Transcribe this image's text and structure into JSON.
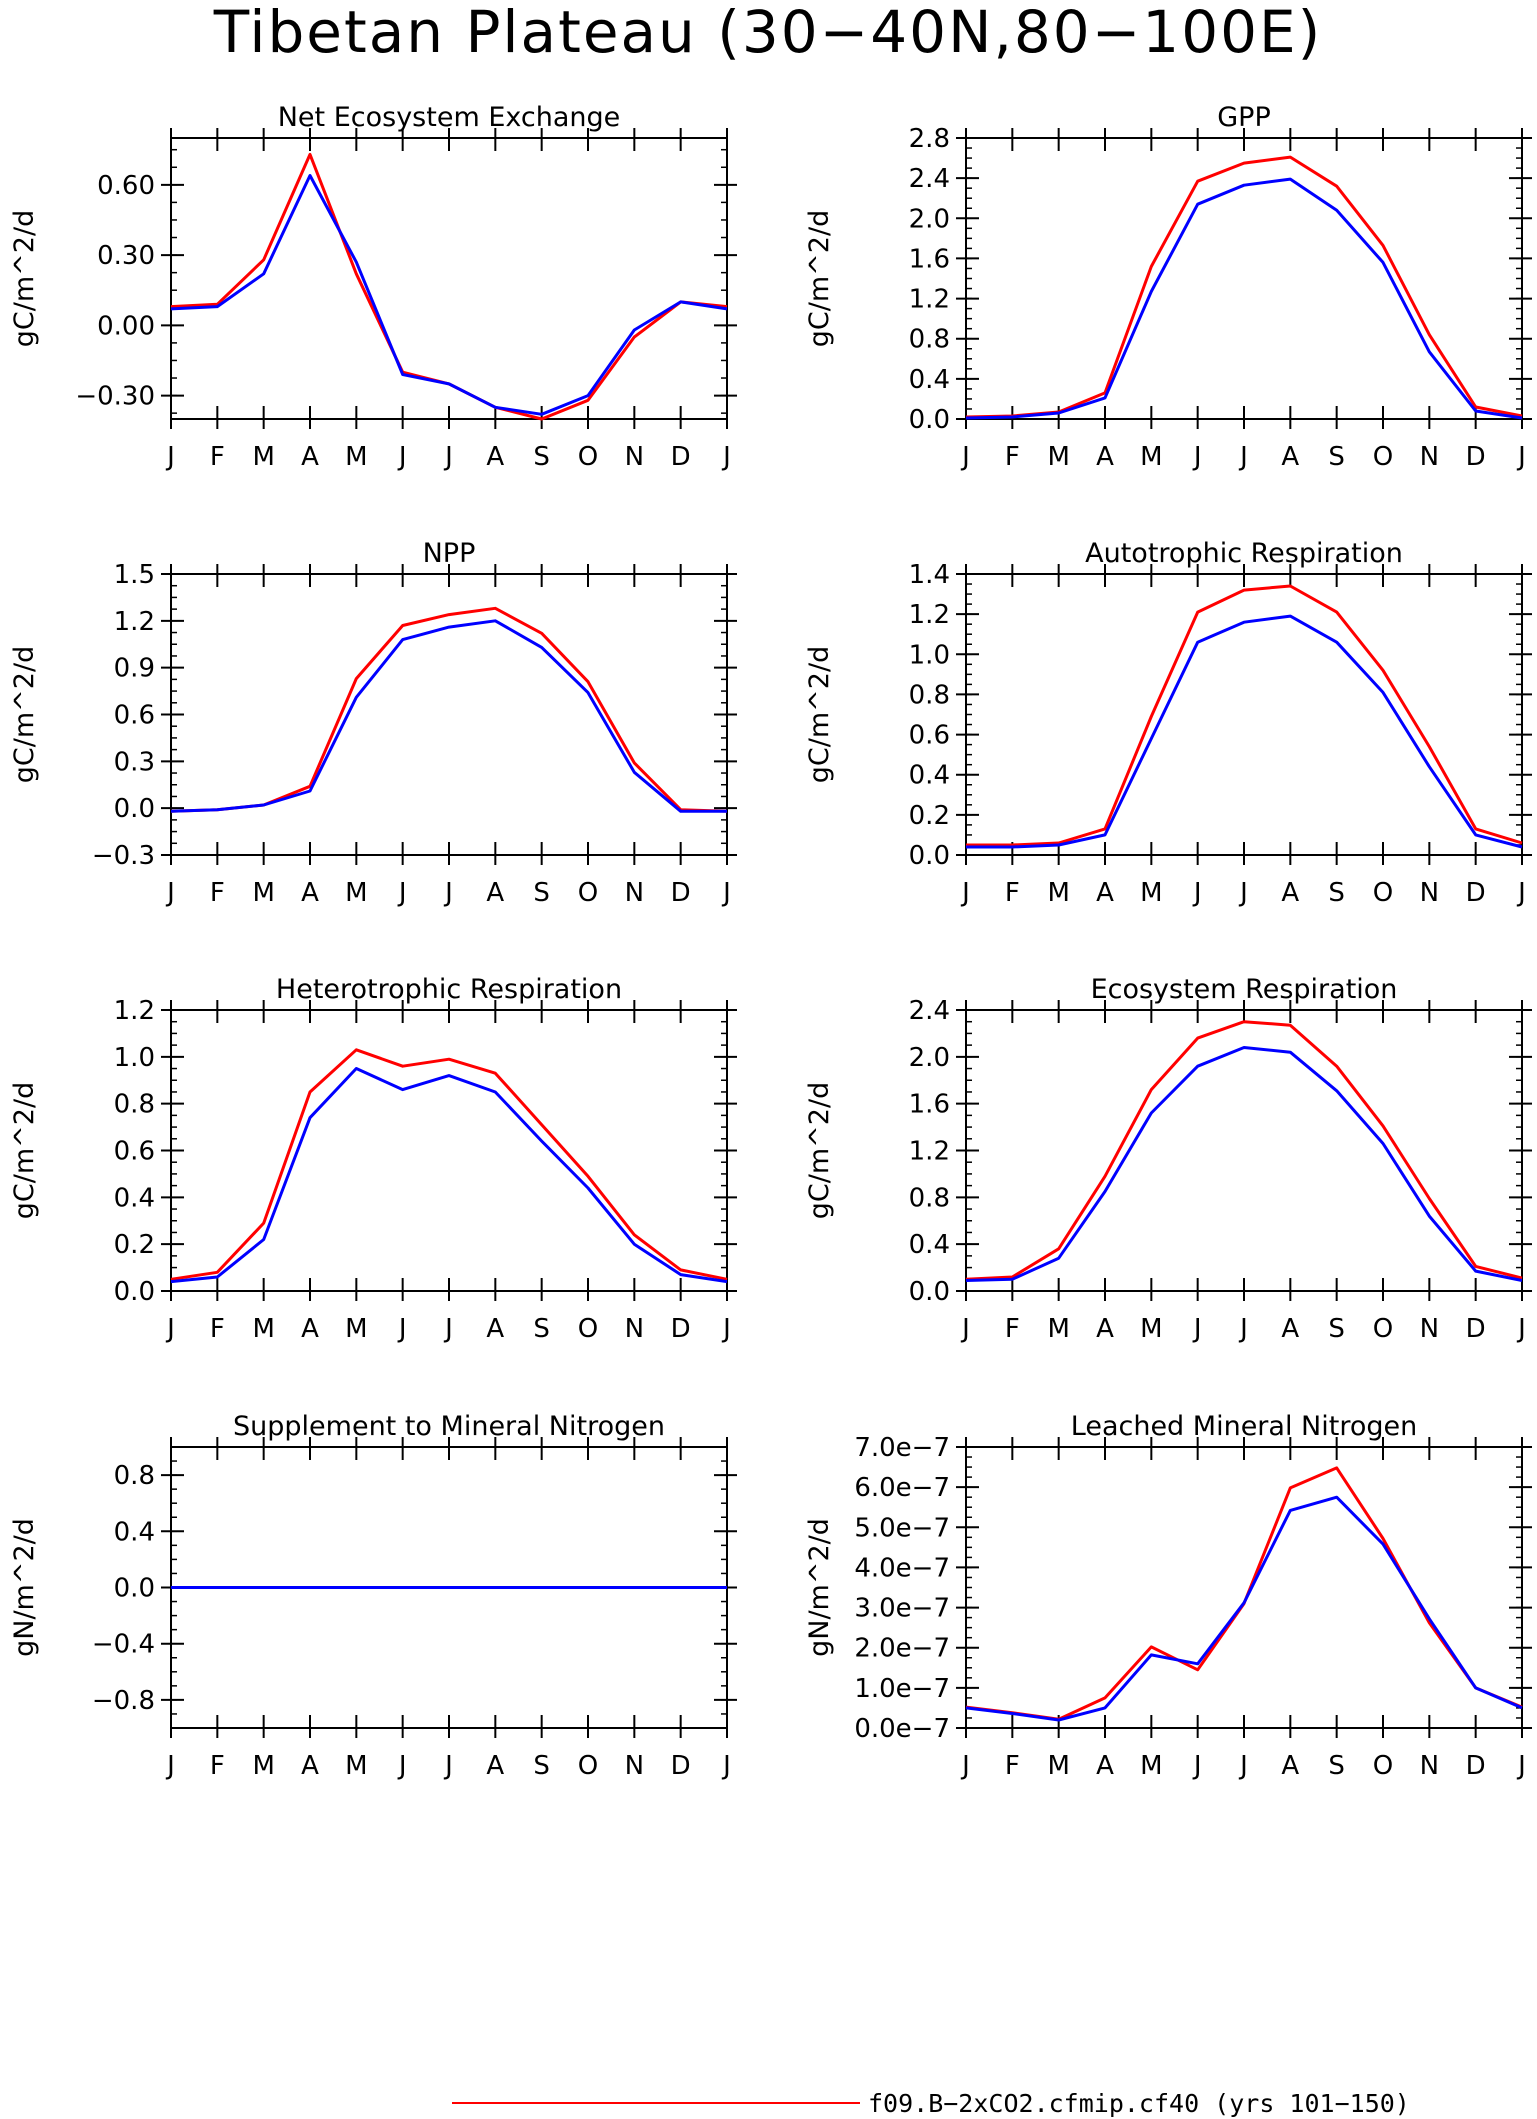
{
  "page": {
    "title": "Tibetan Plateau (30−40N,80−100E)",
    "legend": [
      {
        "label": "f09.B−2xCO2.cfmip.cf40 (yrs 101−150)",
        "color": "#ff0000"
      }
    ]
  },
  "colors": {
    "case": "#ff0000",
    "control": "#0000ff",
    "axis": "#000000"
  },
  "chart_data": [
    {
      "type": "line",
      "title": "Net Ecosystem Exchange",
      "ylabel": "gC/m^2/d",
      "x": [
        "J",
        "F",
        "M",
        "A",
        "M",
        "J",
        "J",
        "A",
        "S",
        "O",
        "N",
        "D",
        "J"
      ],
      "ylim": [
        -0.4,
        0.8
      ],
      "yticks": [
        -0.3,
        0.0,
        0.3,
        0.6
      ],
      "ytick_labels": [
        "−0.30",
        "0.00",
        "0.30",
        "0.60"
      ],
      "minor_step": 0.075,
      "series": [
        {
          "color": "#ff0000",
          "values": [
            0.08,
            0.09,
            0.28,
            0.73,
            0.22,
            -0.2,
            -0.25,
            -0.35,
            -0.4,
            -0.32,
            -0.05,
            0.1,
            0.08
          ]
        },
        {
          "color": "#0000ff",
          "values": [
            0.07,
            0.08,
            0.22,
            0.64,
            0.27,
            -0.21,
            -0.25,
            -0.35,
            -0.38,
            -0.3,
            -0.02,
            0.1,
            0.07
          ]
        }
      ]
    },
    {
      "type": "line",
      "title": "GPP",
      "ylabel": "gC/m^2/d",
      "x": [
        "J",
        "F",
        "M",
        "A",
        "M",
        "J",
        "J",
        "A",
        "S",
        "O",
        "N",
        "D",
        "J"
      ],
      "ylim": [
        0.0,
        2.8
      ],
      "yticks": [
        0.0,
        0.4,
        0.8,
        1.2,
        1.6,
        2.0,
        2.4,
        2.8
      ],
      "ytick_labels": [
        "0.0",
        "0.4",
        "0.8",
        "1.2",
        "1.6",
        "2.0",
        "2.4",
        "2.8"
      ],
      "minor_step": 0.1,
      "series": [
        {
          "color": "#ff0000",
          "values": [
            0.02,
            0.03,
            0.07,
            0.26,
            1.52,
            2.37,
            2.55,
            2.61,
            2.32,
            1.73,
            0.84,
            0.12,
            0.03
          ]
        },
        {
          "color": "#0000ff",
          "values": [
            0.01,
            0.02,
            0.06,
            0.21,
            1.27,
            2.14,
            2.33,
            2.39,
            2.08,
            1.56,
            0.67,
            0.08,
            0.01
          ]
        }
      ]
    },
    {
      "type": "line",
      "title": "NPP",
      "ylabel": "gC/m^2/d",
      "x": [
        "J",
        "F",
        "M",
        "A",
        "M",
        "J",
        "J",
        "A",
        "S",
        "O",
        "N",
        "D",
        "J"
      ],
      "ylim": [
        -0.3,
        1.5
      ],
      "yticks": [
        -0.3,
        0.0,
        0.3,
        0.6,
        0.9,
        1.2,
        1.5
      ],
      "ytick_labels": [
        "−0.3",
        "0.0",
        "0.3",
        "0.6",
        "0.9",
        "1.2",
        "1.5"
      ],
      "minor_step": 0.075,
      "series": [
        {
          "color": "#ff0000",
          "values": [
            -0.02,
            -0.01,
            0.02,
            0.14,
            0.83,
            1.17,
            1.24,
            1.28,
            1.12,
            0.81,
            0.29,
            -0.01,
            -0.02
          ]
        },
        {
          "color": "#0000ff",
          "values": [
            -0.02,
            -0.01,
            0.02,
            0.11,
            0.71,
            1.08,
            1.16,
            1.2,
            1.03,
            0.74,
            0.23,
            -0.02,
            -0.02
          ]
        }
      ]
    },
    {
      "type": "line",
      "title": "Autotrophic Respiration",
      "ylabel": "gC/m^2/d",
      "x": [
        "J",
        "F",
        "M",
        "A",
        "M",
        "J",
        "J",
        "A",
        "S",
        "O",
        "N",
        "D",
        "J"
      ],
      "ylim": [
        0.0,
        1.4
      ],
      "yticks": [
        0.0,
        0.2,
        0.4,
        0.6,
        0.8,
        1.0,
        1.2,
        1.4
      ],
      "ytick_labels": [
        "0.0",
        "0.2",
        "0.4",
        "0.6",
        "0.8",
        "1.0",
        "1.2",
        "1.4"
      ],
      "minor_step": 0.05,
      "series": [
        {
          "color": "#ff0000",
          "values": [
            0.05,
            0.05,
            0.06,
            0.13,
            0.69,
            1.21,
            1.32,
            1.34,
            1.21,
            0.92,
            0.54,
            0.13,
            0.06
          ]
        },
        {
          "color": "#0000ff",
          "values": [
            0.04,
            0.04,
            0.05,
            0.1,
            0.58,
            1.06,
            1.16,
            1.19,
            1.06,
            0.81,
            0.44,
            0.1,
            0.04
          ]
        }
      ]
    },
    {
      "type": "line",
      "title": "Heterotrophic Respiration",
      "ylabel": "gC/m^2/d",
      "x": [
        "J",
        "F",
        "M",
        "A",
        "M",
        "J",
        "J",
        "A",
        "S",
        "O",
        "N",
        "D",
        "J"
      ],
      "ylim": [
        0.0,
        1.2
      ],
      "yticks": [
        0.0,
        0.2,
        0.4,
        0.6,
        0.8,
        1.0,
        1.2
      ],
      "ytick_labels": [
        "0.0",
        "0.2",
        "0.4",
        "0.6",
        "0.8",
        "1.0",
        "1.2"
      ],
      "minor_step": 0.05,
      "series": [
        {
          "color": "#ff0000",
          "values": [
            0.05,
            0.08,
            0.29,
            0.85,
            1.03,
            0.96,
            0.99,
            0.93,
            0.71,
            0.49,
            0.24,
            0.09,
            0.05
          ]
        },
        {
          "color": "#0000ff",
          "values": [
            0.04,
            0.06,
            0.22,
            0.74,
            0.95,
            0.86,
            0.92,
            0.85,
            0.64,
            0.44,
            0.2,
            0.07,
            0.04
          ]
        }
      ]
    },
    {
      "type": "line",
      "title": "Ecosystem Respiration",
      "ylabel": "gC/m^2/d",
      "x": [
        "J",
        "F",
        "M",
        "A",
        "M",
        "J",
        "J",
        "A",
        "S",
        "O",
        "N",
        "D",
        "J"
      ],
      "ylim": [
        0.0,
        2.4
      ],
      "yticks": [
        0.0,
        0.4,
        0.8,
        1.2,
        1.6,
        2.0,
        2.4
      ],
      "ytick_labels": [
        "0.0",
        "0.4",
        "0.8",
        "1.2",
        "1.6",
        "2.0",
        "2.4"
      ],
      "minor_step": 0.1,
      "series": [
        {
          "color": "#ff0000",
          "values": [
            0.1,
            0.12,
            0.36,
            0.98,
            1.72,
            2.16,
            2.3,
            2.27,
            1.92,
            1.41,
            0.79,
            0.21,
            0.11
          ]
        },
        {
          "color": "#0000ff",
          "values": [
            0.09,
            0.1,
            0.28,
            0.85,
            1.52,
            1.92,
            2.08,
            2.04,
            1.71,
            1.26,
            0.64,
            0.17,
            0.09
          ]
        }
      ]
    },
    {
      "type": "line",
      "title": "Supplement to Mineral Nitrogen",
      "ylabel": "gN/m^2/d",
      "x": [
        "J",
        "F",
        "M",
        "A",
        "M",
        "J",
        "J",
        "A",
        "S",
        "O",
        "N",
        "D",
        "J"
      ],
      "ylim": [
        -1.0,
        1.0
      ],
      "yticks": [
        -0.8,
        -0.4,
        0.0,
        0.4,
        0.8
      ],
      "ytick_labels": [
        "−0.8",
        "−0.4",
        "0.0",
        "0.4",
        "0.8"
      ],
      "minor_step": 0.1,
      "series": [
        {
          "color": "#ff0000",
          "values": [
            0,
            0,
            0,
            0,
            0,
            0,
            0,
            0,
            0,
            0,
            0,
            0,
            0
          ]
        },
        {
          "color": "#0000ff",
          "values": [
            0,
            0,
            0,
            0,
            0,
            0,
            0,
            0,
            0,
            0,
            0,
            0,
            0
          ]
        }
      ]
    },
    {
      "type": "line",
      "title": "Leached Mineral Nitrogen",
      "ylabel": "gN/m^2/d",
      "x": [
        "J",
        "F",
        "M",
        "A",
        "M",
        "J",
        "J",
        "A",
        "S",
        "O",
        "N",
        "D",
        "J"
      ],
      "ylim": [
        0.0,
        7e-07
      ],
      "yticks": [
        0.0,
        1e-07,
        2e-07,
        3e-07,
        4e-07,
        5e-07,
        6e-07,
        7e-07
      ],
      "ytick_labels": [
        "0.0e−7",
        "1.0e−7",
        "2.0e−7",
        "3.0e−7",
        "4.0e−7",
        "5.0e−7",
        "6.0e−7",
        "7.0e−7"
      ],
      "minor_step": 2.5e-08,
      "series": [
        {
          "color": "#ff0000",
          "values": [
            5.2e-08,
            3.8e-08,
            2.2e-08,
            7.5e-08,
            2.02e-07,
            1.45e-07,
            3.1e-07,
            5.98e-07,
            6.48e-07,
            4.72e-07,
            2.62e-07,
            1e-07,
            5.2e-08
          ]
        },
        {
          "color": "#0000ff",
          "values": [
            5e-08,
            3.6e-08,
            2e-08,
            5e-08,
            1.82e-07,
            1.6e-07,
            3.12e-07,
            5.42e-07,
            5.75e-07,
            4.58e-07,
            2.72e-07,
            1e-07,
            5e-08
          ]
        }
      ]
    }
  ]
}
